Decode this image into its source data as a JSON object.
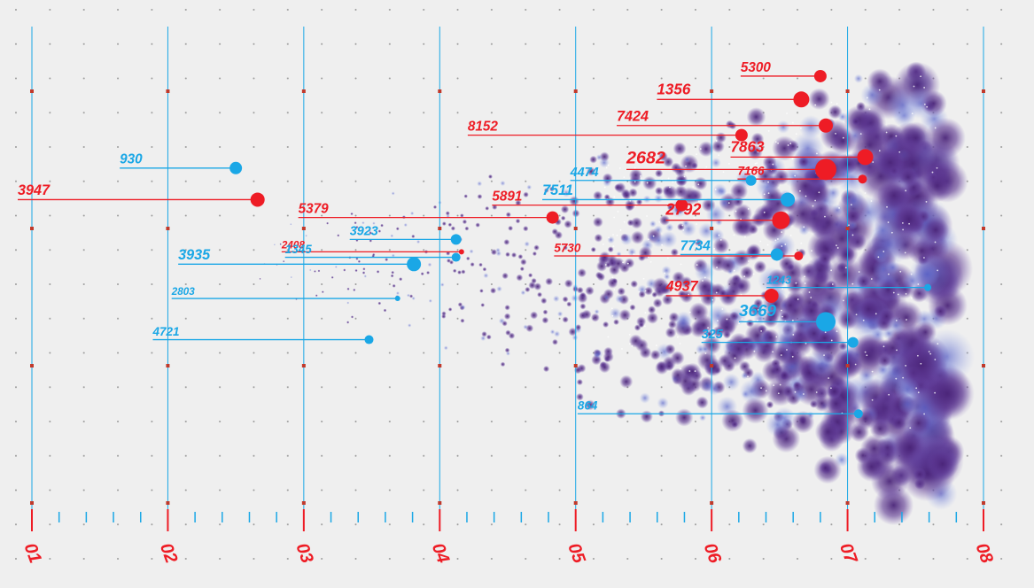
{
  "chart_data": {
    "type": "scatter",
    "xlim": [
      1,
      8
    ],
    "ylim": [
      0,
      3.5
    ],
    "xticks": [
      {
        "value": 1,
        "label": "01"
      },
      {
        "value": 2,
        "label": "02"
      },
      {
        "value": 3,
        "label": "03"
      },
      {
        "value": 4,
        "label": "04"
      },
      {
        "value": 5,
        "label": "05"
      },
      {
        "value": 6,
        "label": "06"
      },
      {
        "value": 7,
        "label": "07"
      },
      {
        "value": 8,
        "label": "08"
      }
    ],
    "yticks": [
      0,
      1,
      2,
      3
    ],
    "grid": true,
    "series": [
      {
        "color": "#ee1c25",
        "x": [
          6.8,
          6.66,
          6.84,
          6.22,
          7.13,
          6.84,
          2.66,
          7.11,
          5.78,
          4.83,
          6.51,
          4.16,
          6.64,
          6.44
        ],
        "values": [
          3.11,
          2.94,
          2.75,
          2.68,
          2.52,
          2.43,
          2.21,
          2.36,
          2.17,
          2.08,
          2.06,
          1.83,
          1.8,
          1.51
        ],
        "sizes": [
          7,
          9,
          8,
          7,
          9,
          12,
          8,
          5,
          7,
          7,
          10,
          3,
          5,
          8
        ],
        "labels": [
          5300,
          1356,
          7424,
          8152,
          7863,
          2682,
          3947,
          7166,
          5891,
          5379,
          2792,
          2408,
          5730,
          4937
        ]
      },
      {
        "color": "#1aa7e6",
        "x": [
          2.5,
          6.29,
          6.56,
          4.12,
          4.12,
          3.81,
          6.48,
          7.59,
          3.69,
          6.84,
          7.04,
          3.48,
          7.08
        ],
        "values": [
          2.44,
          2.35,
          2.21,
          1.92,
          1.79,
          1.74,
          1.81,
          1.57,
          1.49,
          1.32,
          1.17,
          1.19,
          0.65
        ],
        "sizes": [
          7,
          6,
          8,
          6,
          5,
          8,
          7,
          4,
          3,
          11,
          6,
          5,
          5
        ],
        "labels": [
          930,
          4474,
          7511,
          3923,
          1345,
          3935,
          7734,
          1243,
          2803,
          3669,
          325,
          4721,
          864
        ]
      }
    ]
  }
}
